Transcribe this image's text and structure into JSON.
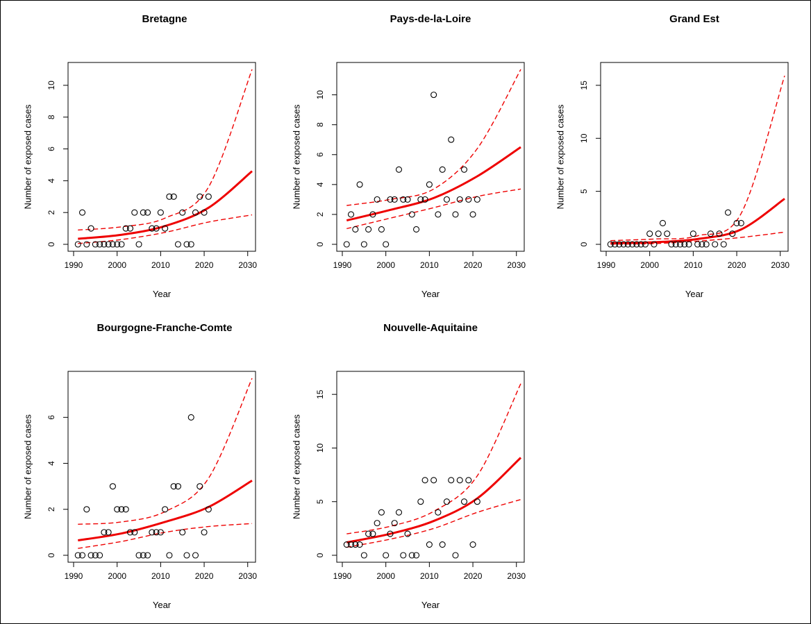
{
  "chart_data": [
    {
      "type": "scatter",
      "title": "Bretagne",
      "xlabel": "Year",
      "ylabel": "Number of exposed cases",
      "xlim": [
        1990,
        2031
      ],
      "ylim": [
        0,
        11
      ],
      "xticks": [
        1990,
        2000,
        2010,
        2020,
        2030
      ],
      "yticks": [
        0,
        2,
        4,
        6,
        8,
        10
      ],
      "points": {
        "x": [
          1991,
          1992,
          1993,
          1994,
          1995,
          1996,
          1997,
          1998,
          1999,
          2000,
          2001,
          2002,
          2003,
          2004,
          2005,
          2006,
          2007,
          2008,
          2009,
          2010,
          2011,
          2012,
          2013,
          2014,
          2015,
          2016,
          2017,
          2018,
          2019,
          2020,
          2021
        ],
        "y": [
          0,
          2,
          0,
          1,
          0,
          0,
          0,
          0,
          0,
          0,
          0,
          1,
          1,
          2,
          0,
          2,
          2,
          1,
          1,
          2,
          1,
          3,
          3,
          0,
          2,
          0,
          0,
          2,
          3,
          2,
          3
        ]
      },
      "fit": {
        "x": [
          1991,
          2001,
          2011,
          2021,
          2031
        ],
        "y": [
          0.35,
          0.6,
          1.15,
          2.3,
          4.6
        ]
      },
      "ci_upper": {
        "x": [
          1991,
          2001,
          2011,
          2021,
          2031
        ],
        "y": [
          0.9,
          1.1,
          1.65,
          3.6,
          11.0
        ]
      },
      "ci_lower": {
        "x": [
          1991,
          2001,
          2011,
          2021,
          2031
        ],
        "y": [
          0.05,
          0.3,
          0.75,
          1.4,
          1.85
        ]
      }
    },
    {
      "type": "scatter",
      "title": "Pays-de-la-Loire",
      "xlabel": "Year",
      "ylabel": "Number of exposed cases",
      "xlim": [
        1990,
        2031
      ],
      "ylim": [
        0,
        11.7
      ],
      "xticks": [
        1990,
        2000,
        2010,
        2020,
        2030
      ],
      "yticks": [
        0,
        2,
        4,
        6,
        8,
        10
      ],
      "points": {
        "x": [
          1991,
          1992,
          1993,
          1994,
          1995,
          1996,
          1997,
          1998,
          1999,
          2000,
          2001,
          2002,
          2003,
          2004,
          2005,
          2006,
          2007,
          2008,
          2009,
          2010,
          2011,
          2012,
          2013,
          2014,
          2015,
          2016,
          2017,
          2018,
          2019,
          2020,
          2021
        ],
        "y": [
          0,
          2,
          1,
          4,
          0,
          1,
          2,
          3,
          1,
          0,
          3,
          3,
          5,
          3,
          3,
          2,
          1,
          3,
          3,
          4,
          10,
          2,
          5,
          3,
          7,
          2,
          3,
          5,
          3,
          2,
          3
        ]
      },
      "fit": {
        "x": [
          1991,
          2001,
          2011,
          2021,
          2031
        ],
        "y": [
          1.6,
          2.3,
          3.1,
          4.55,
          6.5
        ]
      },
      "ci_upper": {
        "x": [
          1991,
          2001,
          2011,
          2021,
          2031
        ],
        "y": [
          2.6,
          3.0,
          3.7,
          6.4,
          11.7
        ]
      },
      "ci_lower": {
        "x": [
          1991,
          2001,
          2011,
          2021,
          2031
        ],
        "y": [
          1.05,
          1.75,
          2.45,
          3.2,
          3.7
        ]
      }
    },
    {
      "type": "scatter",
      "title": "Grand Est",
      "xlabel": "Year",
      "ylabel": "Number of exposed cases",
      "xlim": [
        1990,
        2031
      ],
      "ylim": [
        0,
        16.5
      ],
      "xticks": [
        1990,
        2000,
        2010,
        2020,
        2030
      ],
      "yticks": [
        0,
        5,
        10,
        15
      ],
      "points": {
        "x": [
          1991,
          1992,
          1993,
          1994,
          1995,
          1996,
          1997,
          1998,
          1999,
          2000,
          2001,
          2002,
          2003,
          2004,
          2005,
          2006,
          2007,
          2008,
          2009,
          2010,
          2011,
          2012,
          2013,
          2014,
          2015,
          2016,
          2017,
          2018,
          2019,
          2020,
          2021
        ],
        "y": [
          0,
          0,
          0,
          0,
          0,
          0,
          0,
          0,
          0,
          1,
          0,
          1,
          2,
          1,
          0,
          0,
          0,
          0,
          0,
          1,
          0,
          0,
          0,
          1,
          0,
          1,
          0,
          3,
          1,
          2,
          2
        ]
      },
      "fit": {
        "x": [
          1991,
          2001,
          2011,
          2021,
          2031
        ],
        "y": [
          0.1,
          0.2,
          0.5,
          1.4,
          4.3
        ]
      },
      "ci_upper": {
        "x": [
          1991,
          2001,
          2011,
          2021,
          2031
        ],
        "y": [
          0.35,
          0.5,
          0.8,
          2.9,
          15.9
        ]
      },
      "ci_lower": {
        "x": [
          1991,
          2001,
          2011,
          2021,
          2031
        ],
        "y": [
          0.02,
          0.07,
          0.3,
          0.65,
          1.15
        ]
      }
    },
    {
      "type": "scatter",
      "title": "Bourgogne-Franche-Comte",
      "xlabel": "Year",
      "ylabel": "Number of exposed cases",
      "xlim": [
        1990,
        2031
      ],
      "ylim": [
        0,
        7.7
      ],
      "xticks": [
        1990,
        2000,
        2010,
        2020,
        2030
      ],
      "yticks": [
        0,
        2,
        4,
        6
      ],
      "points": {
        "x": [
          1991,
          1992,
          1993,
          1994,
          1995,
          1996,
          1997,
          1998,
          1999,
          2000,
          2001,
          2002,
          2003,
          2004,
          2005,
          2006,
          2007,
          2008,
          2009,
          2010,
          2011,
          2012,
          2013,
          2014,
          2015,
          2016,
          2017,
          2018,
          2019,
          2020,
          2021
        ],
        "y": [
          0,
          0,
          2,
          0,
          0,
          0,
          1,
          1,
          3,
          2,
          2,
          2,
          1,
          1,
          0,
          0,
          0,
          1,
          1,
          1,
          2,
          0,
          3,
          3,
          1,
          0,
          6,
          0,
          3,
          1,
          2
        ]
      },
      "fit": {
        "x": [
          1991,
          2001,
          2011,
          2021,
          2031
        ],
        "y": [
          0.65,
          0.95,
          1.45,
          2.1,
          3.25
        ]
      },
      "ci_upper": {
        "x": [
          1991,
          2001,
          2011,
          2021,
          2031
        ],
        "y": [
          1.35,
          1.45,
          1.9,
          3.35,
          7.7
        ]
      },
      "ci_lower": {
        "x": [
          1991,
          2001,
          2011,
          2021,
          2031
        ],
        "y": [
          0.3,
          0.6,
          1.0,
          1.25,
          1.38
        ]
      }
    },
    {
      "type": "scatter",
      "title": "Nouvelle-Aquitaine",
      "xlabel": "Year",
      "ylabel": "Number of exposed cases",
      "xlim": [
        1990,
        2031
      ],
      "ylim": [
        0,
        16.5
      ],
      "xticks": [
        1990,
        2000,
        2010,
        2020,
        2030
      ],
      "yticks": [
        0,
        5,
        10,
        15
      ],
      "points": {
        "x": [
          1991,
          1992,
          1993,
          1994,
          1995,
          1996,
          1997,
          1998,
          1999,
          2000,
          2001,
          2002,
          2003,
          2004,
          2005,
          2006,
          2007,
          2008,
          2009,
          2010,
          2011,
          2012,
          2013,
          2014,
          2015,
          2016,
          2017,
          2018,
          2019,
          2020,
          2021
        ],
        "y": [
          1,
          1,
          1,
          1,
          0,
          2,
          2,
          3,
          4,
          0,
          2,
          3,
          4,
          0,
          2,
          0,
          0,
          5,
          7,
          1,
          7,
          4,
          1,
          5,
          7,
          0,
          7,
          5,
          7,
          1,
          5
        ]
      },
      "fit": {
        "x": [
          1991,
          2001,
          2011,
          2021,
          2031
        ],
        "y": [
          1.2,
          2.0,
          3.2,
          5.3,
          9.1
        ]
      },
      "ci_upper": {
        "x": [
          1991,
          2001,
          2011,
          2021,
          2031
        ],
        "y": [
          2.0,
          2.7,
          4.1,
          7.4,
          16.0
        ]
      },
      "ci_lower": {
        "x": [
          1991,
          2001,
          2011,
          2021,
          2031
        ],
        "y": [
          0.75,
          1.5,
          2.5,
          4.0,
          5.2
        ]
      }
    }
  ],
  "colors": {
    "fit": "#ee0000",
    "points": "#000000",
    "axes": "#000000"
  }
}
